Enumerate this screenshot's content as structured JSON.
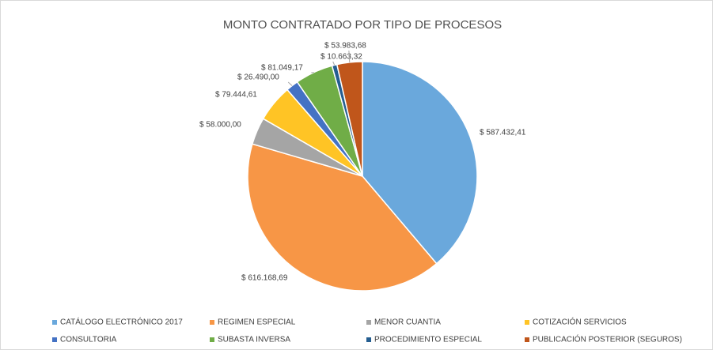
{
  "chart_data": {
    "type": "pie",
    "title": "MONTO CONTRATADO POR TIPO DE PROCESOS",
    "categories": [
      "CATÁLOGO ELECTRÓNICO 2017",
      "REGIMEN ESPECIAL",
      "MENOR CUANTIA",
      "COTIZACIÓN SERVICIOS",
      "CONSULTORIA",
      "SUBASTA INVERSA",
      "PROCEDIMIENTO ESPECIAL",
      "PUBLICACIÓN POSTERIOR (SEGUROS)"
    ],
    "values": [
      587432.41,
      616168.69,
      58000.0,
      79444.61,
      26490.0,
      81049.17,
      10663.32,
      53983.68
    ],
    "value_labels": [
      "$ 587.432,41",
      "$ 616.168,69",
      "$ 58.000,00",
      "$ 79.444,61",
      "$ 26.490,00",
      "$ 81.049,17",
      "$ 10.663,32",
      "$ 53.983,68"
    ],
    "colors": [
      "#6AA8DC",
      "#F79646",
      "#A5A5A5",
      "#FFC425",
      "#4472C4",
      "#70AD47",
      "#255E91",
      "#C0561B"
    ],
    "legend": "bottom"
  }
}
